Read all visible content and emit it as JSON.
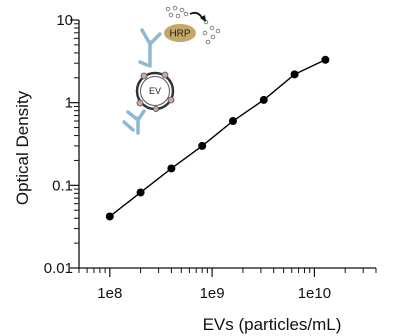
{
  "chart_data": {
    "type": "line",
    "xscale": "log",
    "yscale": "log",
    "xlim": [
      50000000,
      40000000000
    ],
    "ylim": [
      0.01,
      10
    ],
    "xlabel": "EVs (particles/mL)",
    "ylabel": "Optical Density",
    "x_tick_labels": [
      "1e8",
      "1e9",
      "1e10"
    ],
    "y_tick_labels": [
      "0.01",
      "0.1",
      "1",
      "10"
    ],
    "grid": false,
    "series": [
      {
        "x": [
          100000000,
          200000000,
          400000000,
          800000000,
          1600000000,
          3200000000,
          6400000000,
          12800000000
        ],
        "y": [
          0.042,
          0.082,
          0.16,
          0.3,
          0.6,
          1.08,
          2.2,
          3.3
        ]
      }
    ]
  },
  "illustration": {
    "hrp_label": "HRP",
    "ev_label": "EV"
  },
  "colors": {
    "line": "#000000",
    "marker": "#000000",
    "antibody": "#8fb9d3",
    "hrp": "#c4a86a",
    "ev_ring": "#333333"
  }
}
